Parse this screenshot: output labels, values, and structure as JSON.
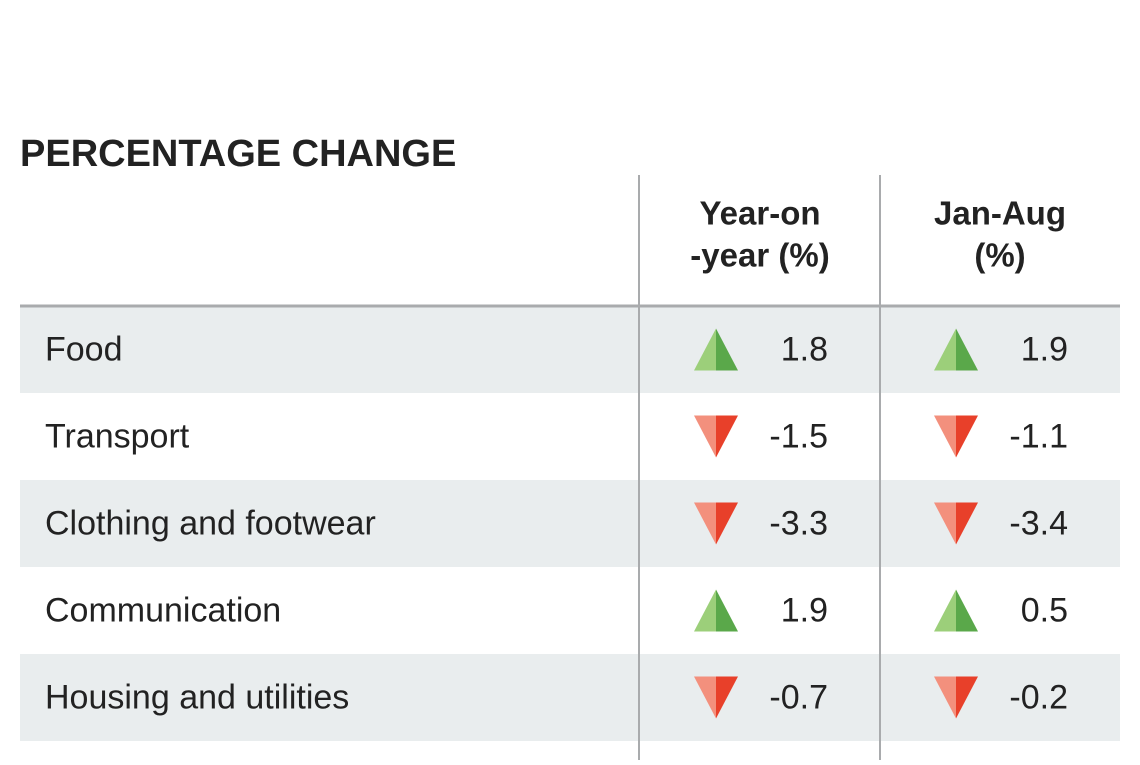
{
  "table": {
    "title": "PERCENTAGE CHANGE",
    "columns": [
      [
        "Year-on",
        "-year (%)"
      ],
      [
        "Jan-Aug",
        "(%)"
      ]
    ],
    "rows": [
      [
        "Food",
        1.8,
        1.9
      ],
      [
        "Transport",
        -1.5,
        -1.1
      ],
      [
        "Clothing and footwear",
        -3.3,
        -3.4
      ],
      [
        "Communication",
        1.9,
        0.5
      ],
      [
        "Housing and utilities",
        -0.7,
        -0.2
      ]
    ]
  }
}
